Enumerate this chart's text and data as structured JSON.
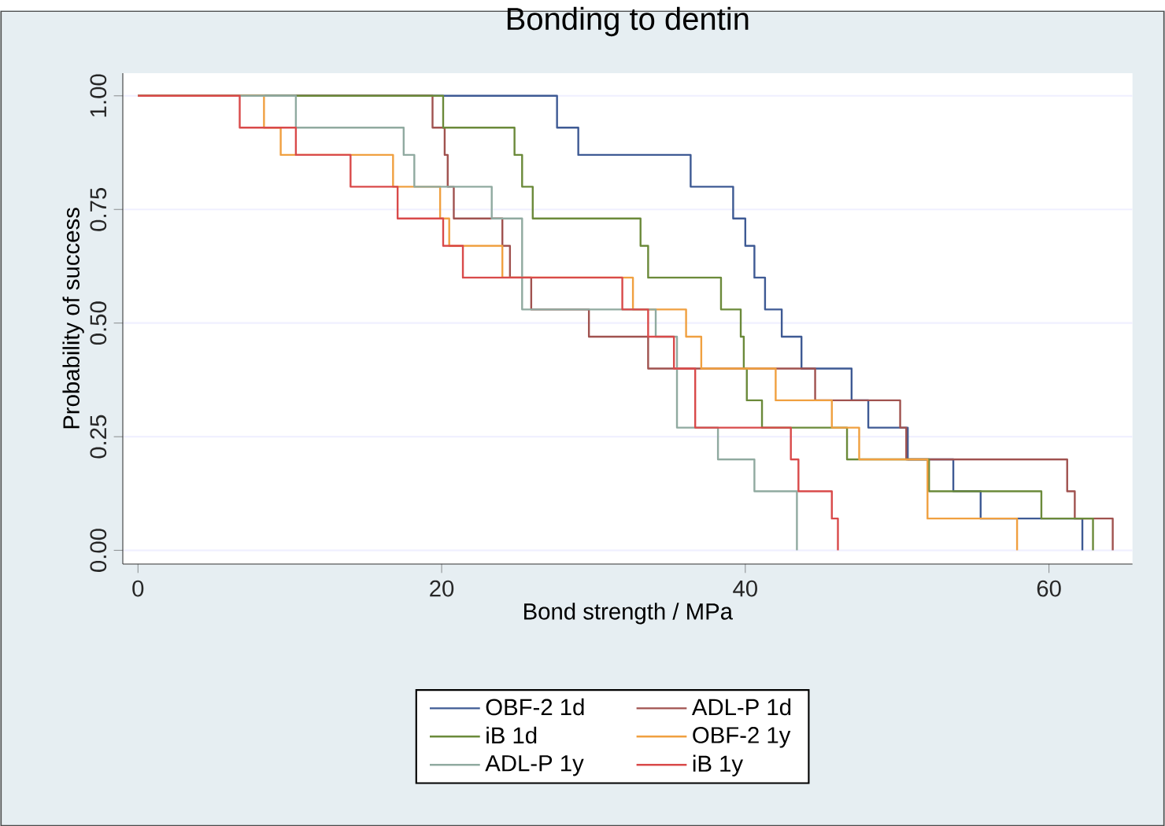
{
  "chart_data": {
    "type": "step",
    "title": "Bonding to dentin",
    "xlabel": "Bond strength / MPa",
    "ylabel": "Probability of success",
    "xlim": [
      -1,
      65.5
    ],
    "ylim": [
      -0.03,
      1.05
    ],
    "xticks": [
      0,
      20,
      40,
      60
    ],
    "yticks": [
      {
        "value": 0,
        "label": "0.00"
      },
      {
        "value": 0.25,
        "label": "0.25"
      },
      {
        "value": 0.5,
        "label": "0.50"
      },
      {
        "value": 0.75,
        "label": "0.75"
      },
      {
        "value": 1,
        "label": "1.00"
      }
    ],
    "grid": "y",
    "legend": "bottom",
    "series": [
      {
        "name": "OBF-2 1d",
        "color": "#3e5a94",
        "x": [
          0,
          27.6,
          29,
          36.4,
          39.2,
          40.0,
          40.6,
          41.3,
          42.4,
          43.7,
          47.0,
          48.1,
          50.7,
          53.7,
          55.5,
          62.2
        ],
        "values": [
          1,
          0.93,
          0.87,
          0.8,
          0.73,
          0.67,
          0.6,
          0.53,
          0.47,
          0.4,
          0.33,
          0.27,
          0.2,
          0.13,
          0.07,
          0
        ]
      },
      {
        "name": "ADL-P 1d",
        "color": "#a0524f",
        "x": [
          0,
          19.4,
          20.2,
          20.4,
          20.8,
          24.0,
          24.5,
          25.9,
          29.7,
          33.6,
          44.6,
          50.2,
          50.6,
          61.2,
          61.7,
          64.2
        ],
        "values": [
          1,
          0.93,
          0.87,
          0.8,
          0.73,
          0.67,
          0.6,
          0.53,
          0.47,
          0.4,
          0.33,
          0.27,
          0.2,
          0.13,
          0.07,
          0
        ]
      },
      {
        "name": "iB 1d",
        "color": "#6b8a3a",
        "x": [
          0,
          20.1,
          24.8,
          25.3,
          26.0,
          33.1,
          33.6,
          38.4,
          39.7,
          39.9,
          40.1,
          41.1,
          46.7,
          52.1,
          59.5,
          62.9
        ],
        "values": [
          1,
          0.93,
          0.87,
          0.8,
          0.73,
          0.67,
          0.6,
          0.53,
          0.47,
          0.4,
          0.33,
          0.27,
          0.2,
          0.13,
          0.07,
          0
        ]
      },
      {
        "name": "OBF-2 1y",
        "color": "#f0a040",
        "x": [
          0,
          8.3,
          9.4,
          16.8,
          19.9,
          20.5,
          24.0,
          32.6,
          36.1,
          37.1,
          42.0,
          45.7,
          47.5,
          52.0,
          57.9
        ],
        "values": [
          1,
          0.93,
          0.87,
          0.8,
          0.73,
          0.67,
          0.6,
          0.53,
          0.47,
          0.4,
          0.33,
          0.27,
          0.2,
          0.07,
          0
        ]
      },
      {
        "name": "ADL-P 1y",
        "color": "#90aaa0",
        "x": [
          0,
          10.4,
          17.5,
          18.2,
          23.3,
          25.3,
          34.1,
          35.5,
          38.2,
          40.6,
          43.4
        ],
        "values": [
          1,
          0.93,
          0.87,
          0.8,
          0.73,
          0.53,
          0.47,
          0.27,
          0.2,
          0.13,
          0
        ]
      },
      {
        "name": "iB 1y",
        "color": "#d94a4a",
        "x": [
          0,
          6.7,
          10.4,
          14.0,
          17.1,
          20.1,
          21.4,
          31.9,
          33.6,
          35.3,
          36.7,
          43.0,
          43.5,
          45.7,
          46.1
        ],
        "values": [
          1,
          0.93,
          0.87,
          0.8,
          0.73,
          0.67,
          0.6,
          0.53,
          0.47,
          0.4,
          0.27,
          0.2,
          0.13,
          0.07,
          0
        ]
      }
    ]
  }
}
